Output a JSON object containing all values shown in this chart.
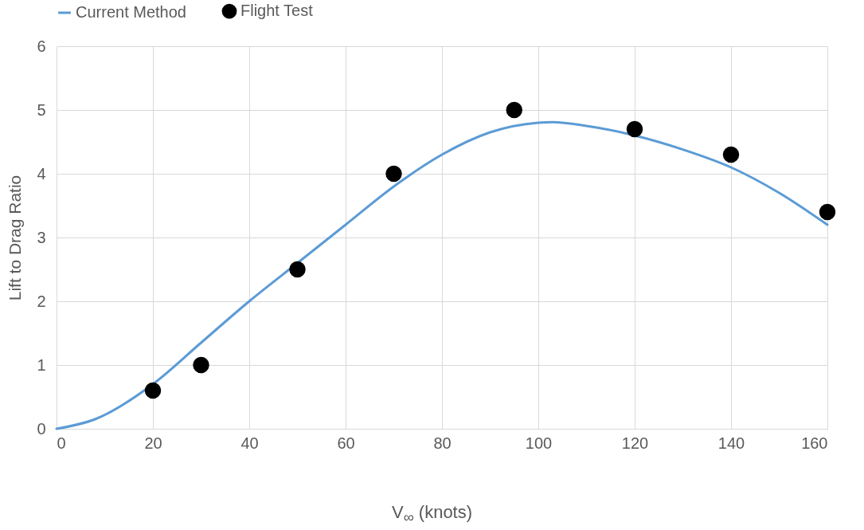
{
  "chart_data": {
    "type": "line",
    "xlabel": "V$_{∞}$ (knots)",
    "ylabel": "Lift to Drag Ratio",
    "xlim": [
      0,
      160
    ],
    "xticks": [
      0,
      20,
      40,
      60,
      80,
      100,
      120,
      140,
      160
    ],
    "ylim": [
      0,
      6
    ],
    "yticks": [
      0,
      1,
      2,
      3,
      4,
      5,
      6
    ],
    "grid": true,
    "legend": "top",
    "line_style": "solid",
    "series": [
      {
        "name": "Current Method",
        "marker": "none",
        "color": "#5b9bd5",
        "x": [
          0,
          8,
          20,
          30,
          40,
          50,
          60,
          70,
          80,
          90,
          100,
          103,
          110,
          120,
          130,
          140,
          150,
          160
        ],
        "values": [
          0,
          0.15,
          0.7,
          1.35,
          2.0,
          2.6,
          3.2,
          3.8,
          4.3,
          4.65,
          4.8,
          4.81,
          4.75,
          4.6,
          4.38,
          4.1,
          3.7,
          3.2
        ]
      },
      {
        "name": "Flight Test",
        "type": "scatter",
        "marker": "circle",
        "color": "#000000",
        "x": [
          20,
          30,
          50,
          70,
          95,
          120,
          140,
          160
        ],
        "values": [
          0.6,
          1.0,
          2.5,
          4.0,
          5.0,
          4.7,
          4.3,
          3.4
        ]
      }
    ]
  }
}
